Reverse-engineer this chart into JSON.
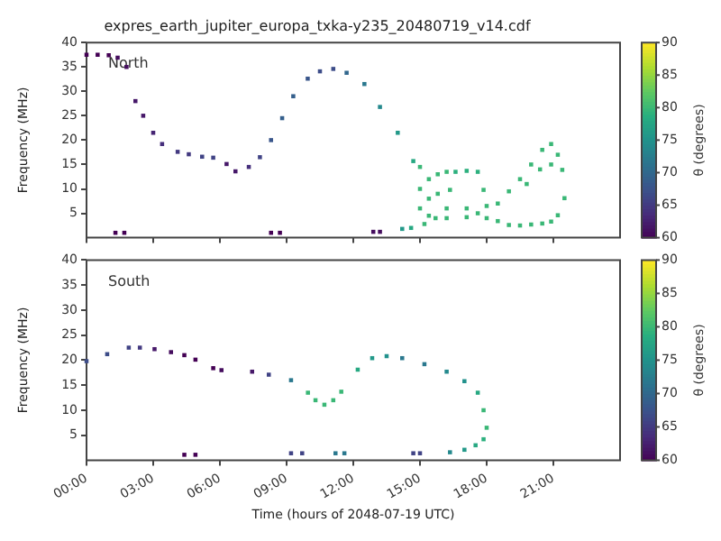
{
  "chart_data": [
    {
      "type": "scatter",
      "title": "expres_earth_jupiter_europa_txka-y235_20480719_v14.cdf",
      "ylabel": "Frequency (MHz)",
      "clabel": "θ (degrees)",
      "annotations": [
        "North"
      ],
      "marker": "square",
      "tick_labels": "y",
      "xlim": [
        0,
        24
      ],
      "xticks": [
        {
          "value": 0,
          "label": null
        },
        {
          "value": 3,
          "label": null
        },
        {
          "value": 6,
          "label": null
        },
        {
          "value": 9,
          "label": null
        },
        {
          "value": 12,
          "label": null
        },
        {
          "value": 15,
          "label": null
        },
        {
          "value": 18,
          "label": null
        },
        {
          "value": 21,
          "label": null
        }
      ],
      "ylim": [
        0,
        40
      ],
      "yticks": [
        5,
        10,
        15,
        20,
        25,
        30,
        35,
        40
      ],
      "clim": [
        60,
        90
      ],
      "cticks": [
        60,
        65,
        70,
        75,
        80,
        85,
        90
      ],
      "series": [
        {
          "x": [
            0,
            0.5,
            1.0,
            1.4,
            1.8,
            2.2,
            2.55,
            3.0,
            3.4,
            4.1,
            4.6,
            5.2,
            5.7,
            6.3,
            6.7,
            7.3,
            7.8,
            8.3,
            8.8,
            9.3,
            9.95,
            10.5,
            11.1,
            11.7,
            12.5,
            13.2,
            14.0,
            14.7,
            15.0,
            15.0,
            15.0,
            15.4,
            15.4,
            15.4,
            15.8,
            15.8,
            15.7,
            16.2,
            16.35,
            16.2,
            16.2,
            16.6,
            17.1,
            17.6,
            17.86,
            17.1,
            17.1,
            17.6,
            18.0,
            18.0,
            18.5,
            18.5,
            19.0,
            19.5,
            20.0,
            20.5,
            19.0,
            19.5,
            20.0,
            20.5,
            20.9,
            21.2,
            21.4,
            21.5,
            21.2,
            20.9,
            19.8,
            20.4,
            20.9,
            1.3,
            1.7,
            8.3,
            8.7,
            12.9,
            13.2,
            14.2,
            14.6,
            15.2
          ],
          "values": [
            37.5,
            37.5,
            37.4,
            36.9,
            35,
            28,
            25,
            21.5,
            19.2,
            17.6,
            17.1,
            16.6,
            16.4,
            15.1,
            13.6,
            14.5,
            16.5,
            20,
            24.5,
            29,
            32.6,
            34.1,
            34.6,
            33.8,
            31.5,
            26.8,
            21.5,
            15.7,
            14.5,
            10,
            6,
            12,
            8,
            4.5,
            13,
            9,
            4.0,
            13.5,
            9.8,
            6,
            4,
            13.5,
            13.7,
            13.5,
            9.8,
            6.0,
            4.2,
            5,
            6.5,
            4,
            3.4,
            7,
            2.6,
            2.5,
            2.7,
            2.9,
            9.5,
            12,
            15,
            18,
            19.2,
            17,
            13.9,
            8.1,
            4.6,
            3.3,
            11,
            14,
            15,
            1,
            1,
            1,
            1,
            1.2,
            1.2,
            1.8,
            2.0,
            2.8
          ],
          "cvalues": [
            60,
            60,
            60,
            61,
            61,
            62,
            62,
            63,
            64,
            65,
            65,
            66,
            66,
            62,
            62,
            64,
            66,
            68,
            69,
            69,
            68,
            67,
            67,
            70,
            72,
            74,
            76,
            78,
            80,
            80,
            80,
            80,
            80,
            80,
            80,
            80,
            80,
            80,
            80,
            80,
            80,
            79,
            79,
            79,
            80,
            80,
            80,
            80,
            80,
            80,
            80,
            80,
            80,
            80,
            80,
            80,
            80,
            80,
            80,
            80,
            80,
            80,
            80,
            80,
            80,
            80,
            80,
            80,
            80,
            60,
            60,
            60,
            60,
            61,
            61,
            76,
            78,
            80
          ]
        }
      ]
    },
    {
      "type": "scatter",
      "xlabel": "Time (hours of 2048-07-19 UTC)",
      "ylabel": "Frequency (MHz)",
      "clabel": "θ (degrees)",
      "annotations": [
        "South"
      ],
      "marker": "square",
      "xlim": [
        0,
        24
      ],
      "xticks": [
        {
          "value": 0,
          "label": "00:00"
        },
        {
          "value": 3,
          "label": "03:00"
        },
        {
          "value": 6,
          "label": "06:00"
        },
        {
          "value": 9,
          "label": "09:00"
        },
        {
          "value": 12,
          "label": "12:00"
        },
        {
          "value": 15,
          "label": "15:00"
        },
        {
          "value": 18,
          "label": "18:00"
        },
        {
          "value": 21,
          "label": "21:00"
        }
      ],
      "ylim": [
        0,
        40
      ],
      "yticks": [
        5,
        10,
        15,
        20,
        25,
        30,
        35,
        40
      ],
      "clim": [
        60,
        90
      ],
      "cticks": [
        60,
        65,
        70,
        75,
        80,
        85,
        90
      ],
      "series": [
        {
          "x": [
            0,
            0.93,
            1.9,
            2.4,
            3.06,
            3.8,
            4.4,
            4.9,
            5.7,
            6.07,
            7.45,
            8.2,
            9.2,
            9.96,
            10.3,
            10.7,
            11.1,
            11.46,
            12.2,
            12.85,
            13.5,
            14.2,
            15.2,
            16.2,
            17.0,
            17.6,
            17.86,
            18.0,
            17.86,
            17.5,
            17.0,
            16.35,
            4.4,
            4.9,
            9.2,
            9.7,
            11.2,
            11.6,
            14.7,
            15.0
          ],
          "values": [
            19.8,
            21.2,
            22.5,
            22.5,
            22.2,
            21.6,
            21.0,
            20.1,
            18.4,
            18.0,
            17.7,
            17.1,
            16.0,
            13.5,
            12,
            11.1,
            12,
            13.7,
            18.1,
            20.4,
            20.8,
            20.4,
            19.2,
            17.7,
            15.8,
            13.5,
            10.0,
            6.5,
            4.2,
            3.0,
            2.1,
            1.6,
            1.1,
            1.1,
            1.4,
            1.4,
            1.4,
            1.4,
            1.4,
            1.4
          ],
          "cvalues": [
            67,
            67,
            66,
            65,
            62,
            61,
            60,
            60,
            60,
            61,
            62,
            66,
            72,
            80,
            80,
            80,
            80,
            80,
            78,
            76,
            75,
            72,
            72,
            74,
            75,
            78,
            80,
            80,
            79,
            78,
            76,
            74,
            60,
            60,
            66,
            66,
            72,
            72,
            66,
            66
          ]
        }
      ]
    }
  ]
}
